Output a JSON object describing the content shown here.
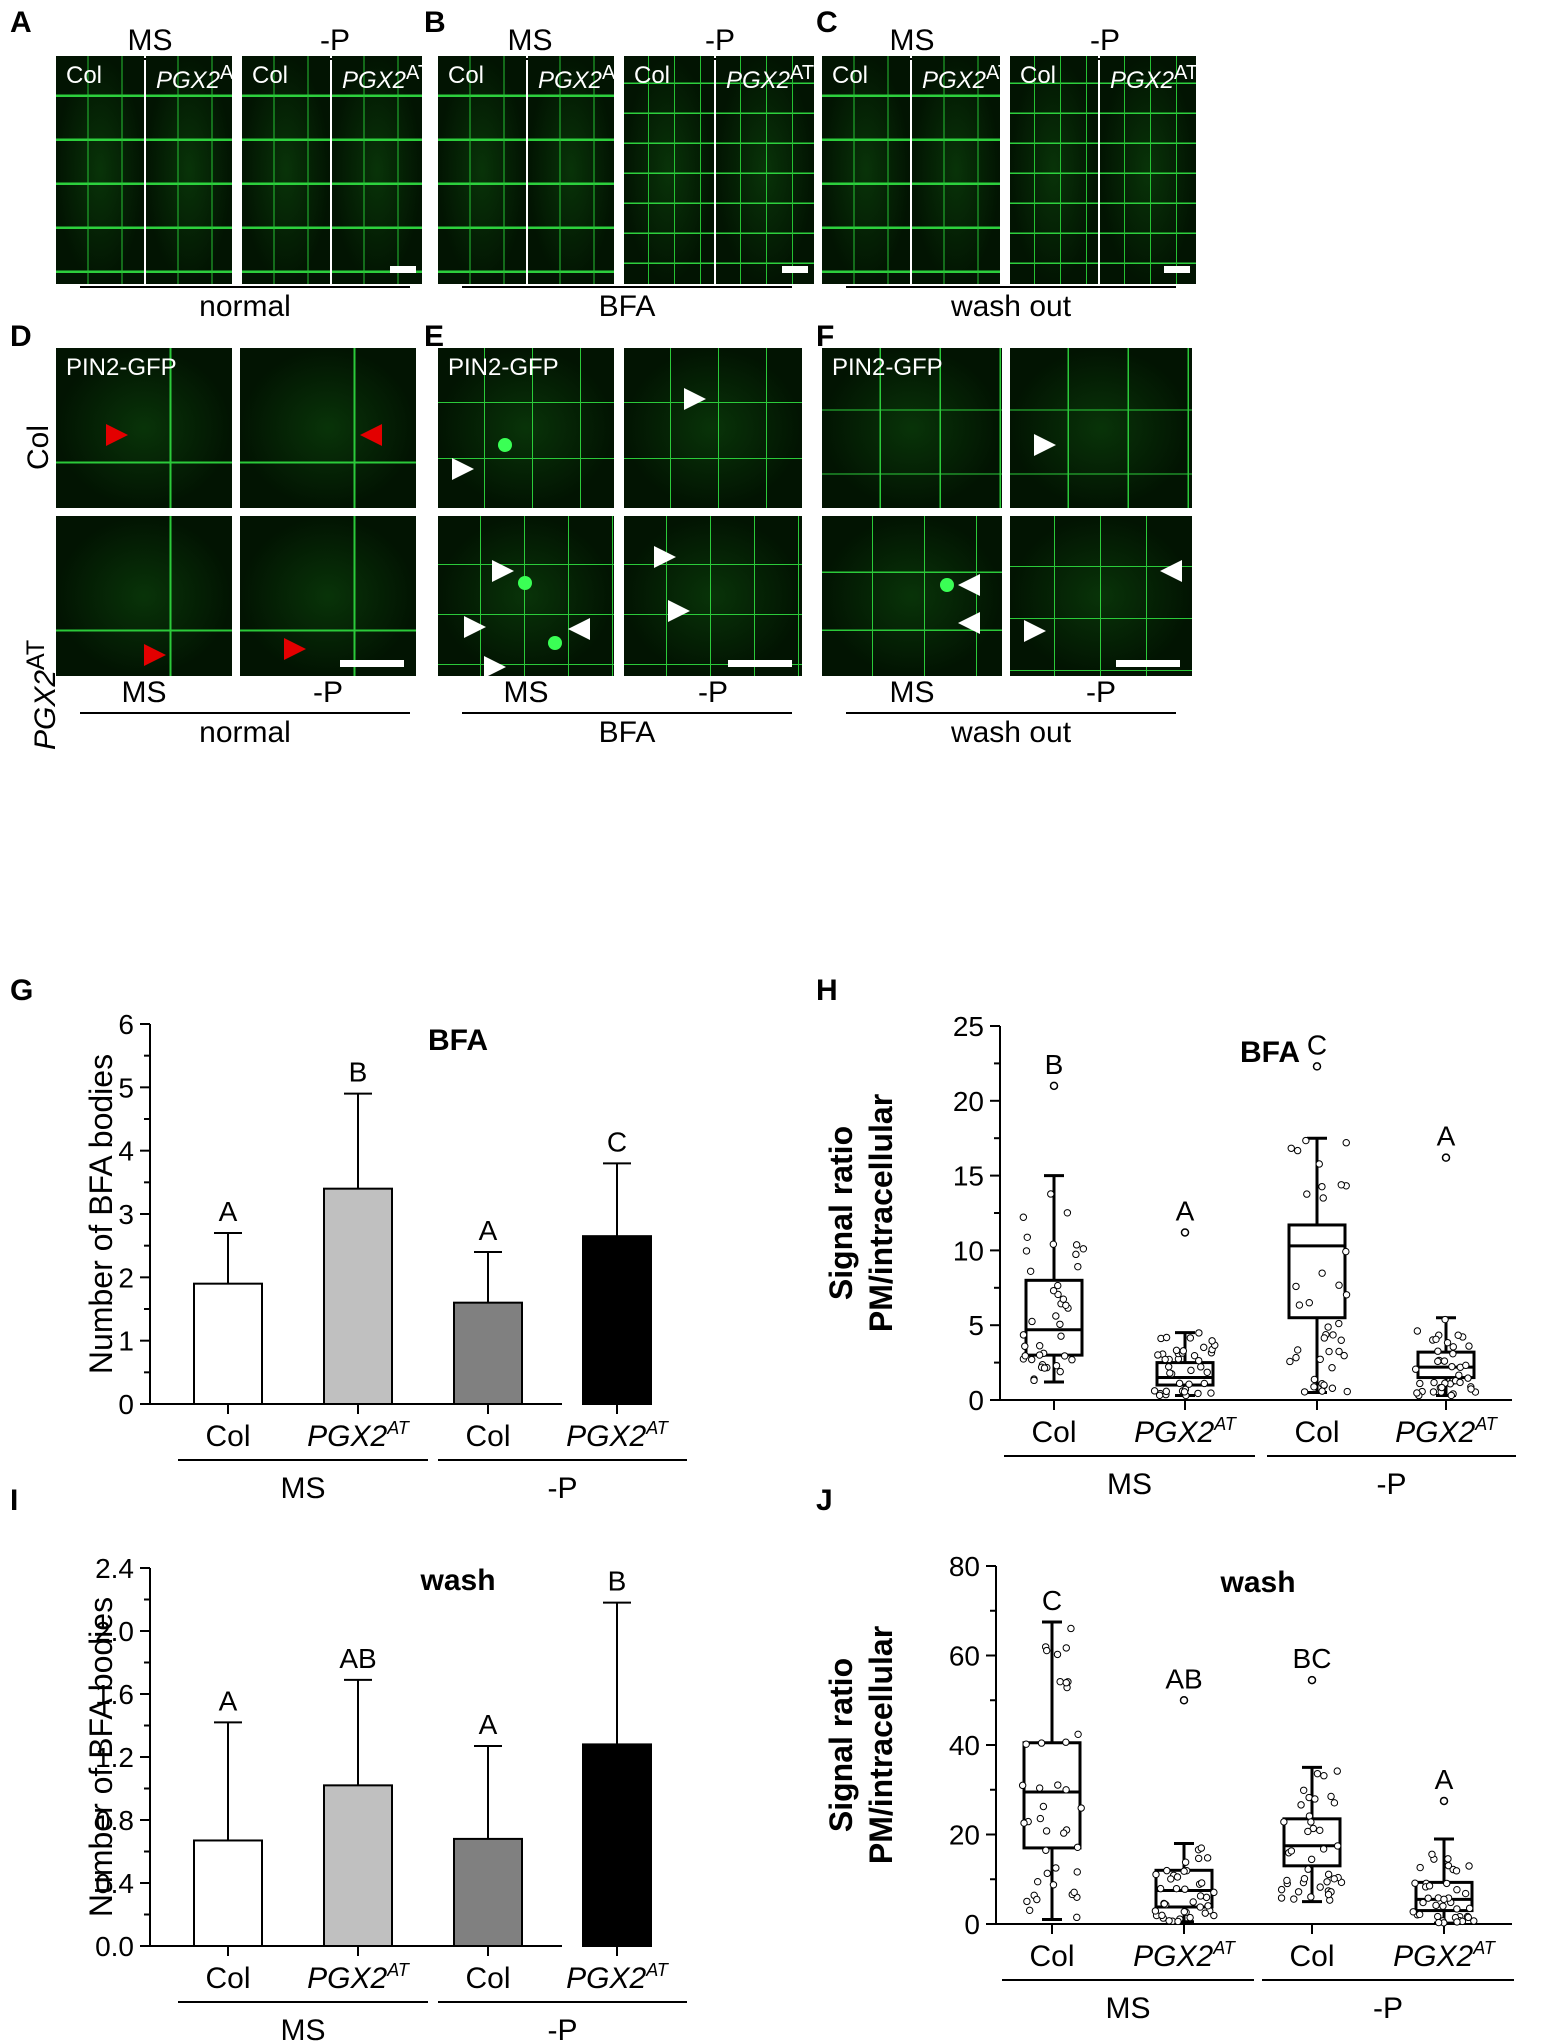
{
  "panels": {
    "A": {
      "letter": "A",
      "groups": [
        "MS",
        "-P"
      ],
      "labels": [
        "Col",
        "PGX2",
        "Col",
        "PGX2"
      ],
      "condition": "normal"
    },
    "B": {
      "letter": "B",
      "groups": [
        "MS",
        "-P"
      ],
      "labels": [
        "Col",
        "PGX2",
        "Col",
        "PGX2"
      ],
      "condition": "BFA"
    },
    "C": {
      "letter": "C",
      "groups": [
        "MS",
        "-P"
      ],
      "labels": [
        "Col",
        "PGX2",
        "Col",
        "PGX2"
      ],
      "condition": "wash out"
    },
    "D": {
      "letter": "D",
      "marker": "PIN2-GFP",
      "rows": [
        "Col",
        "PGX2"
      ],
      "cols": [
        "MS",
        "-P"
      ],
      "condition": "normal"
    },
    "E": {
      "letter": "E",
      "marker": "PIN2-GFP",
      "cols": [
        "MS",
        "-P"
      ],
      "condition": "BFA"
    },
    "F": {
      "letter": "F",
      "marker": "PIN2-GFP",
      "cols": [
        "MS",
        "-P"
      ],
      "condition": "wash out"
    }
  },
  "superscript": "AT",
  "chart_data": [
    {
      "panel": "G",
      "type": "bar",
      "title": "BFA",
      "categories": [
        "Col",
        "PGX2",
        "Col",
        "PGX2"
      ],
      "groups": [
        "MS",
        "-P"
      ],
      "values": [
        1.9,
        3.4,
        1.6,
        2.65
      ],
      "errors": [
        0.8,
        1.5,
        0.8,
        1.15
      ],
      "letters": [
        "A",
        "B",
        "A",
        "C"
      ],
      "colors": [
        "#ffffff",
        "#c0c0c0",
        "#808080",
        "#000000"
      ],
      "ylabel": "Number of BFA bodies",
      "ylim": [
        0,
        6
      ],
      "yticks": [
        "0",
        "1",
        "2",
        "3",
        "4",
        "5",
        "6"
      ]
    },
    {
      "panel": "H",
      "type": "box",
      "title": "BFA",
      "categories": [
        "Col",
        "PGX2",
        "Col",
        "PGX2"
      ],
      "groups": [
        "MS",
        "-P"
      ],
      "boxes": [
        {
          "q1": 3.0,
          "median": 4.7,
          "q3": 8.0,
          "whisker_low": 1.2,
          "whisker_high": 15.0,
          "outliers": [
            21.0
          ]
        },
        {
          "q1": 1.0,
          "median": 1.5,
          "q3": 2.5,
          "whisker_low": 0.3,
          "whisker_high": 4.5,
          "outliers": [
            11.2
          ]
        },
        {
          "q1": 5.5,
          "median": 10.3,
          "q3": 11.7,
          "whisker_low": 0.5,
          "whisker_high": 17.5,
          "outliers": [
            22.3
          ]
        },
        {
          "q1": 1.5,
          "median": 2.2,
          "q3": 3.2,
          "whisker_low": 0.3,
          "whisker_high": 5.5,
          "outliers": [
            16.2
          ]
        }
      ],
      "letters": [
        "B",
        "A",
        "C",
        "A"
      ],
      "ylabel": "Signal ratio PM/intracellular",
      "ylim": [
        0,
        25
      ],
      "yticks": [
        "0",
        "5",
        "10",
        "15",
        "20",
        "25"
      ]
    },
    {
      "panel": "I",
      "type": "bar",
      "title": "wash",
      "categories": [
        "Col",
        "PGX2",
        "Col",
        "PGX2"
      ],
      "groups": [
        "MS",
        "-P"
      ],
      "values": [
        0.67,
        1.02,
        0.68,
        1.28
      ],
      "errors": [
        0.75,
        0.67,
        0.59,
        0.9
      ],
      "letters": [
        "A",
        "AB",
        "A",
        "B"
      ],
      "colors": [
        "#ffffff",
        "#c0c0c0",
        "#808080",
        "#000000"
      ],
      "ylabel": "Number of BFA bodies",
      "ylim": [
        0,
        2.4
      ],
      "yticks": [
        "0.0",
        "0.4",
        "0.8",
        "1.2",
        "1.6",
        "2.0",
        "2.4"
      ]
    },
    {
      "panel": "J",
      "type": "box",
      "title": "wash",
      "categories": [
        "Col",
        "PGX2",
        "Col",
        "PGX2"
      ],
      "groups": [
        "MS",
        "-P"
      ],
      "boxes": [
        {
          "q1": 17.0,
          "median": 29.5,
          "q3": 40.5,
          "whisker_low": 1.0,
          "whisker_high": 67.5,
          "outliers": []
        },
        {
          "q1": 3.8,
          "median": 7.5,
          "q3": 12.0,
          "whisker_low": 0.5,
          "whisker_high": 18.0,
          "outliers": [
            50.0
          ]
        },
        {
          "q1": 13.0,
          "median": 17.5,
          "q3": 23.5,
          "whisker_low": 5.0,
          "whisker_high": 35.0,
          "outliers": [
            54.5
          ]
        },
        {
          "q1": 3.0,
          "median": 5.5,
          "q3": 9.3,
          "whisker_low": 0.2,
          "whisker_high": 19.0,
          "outliers": [
            27.5
          ]
        }
      ],
      "letters": [
        "C",
        "AB",
        "BC",
        "A"
      ],
      "ylabel": "Signal ratio PM/intracellular",
      "ylim": [
        0,
        80
      ],
      "yticks": [
        "0",
        "20",
        "40",
        "60",
        "80"
      ]
    }
  ]
}
